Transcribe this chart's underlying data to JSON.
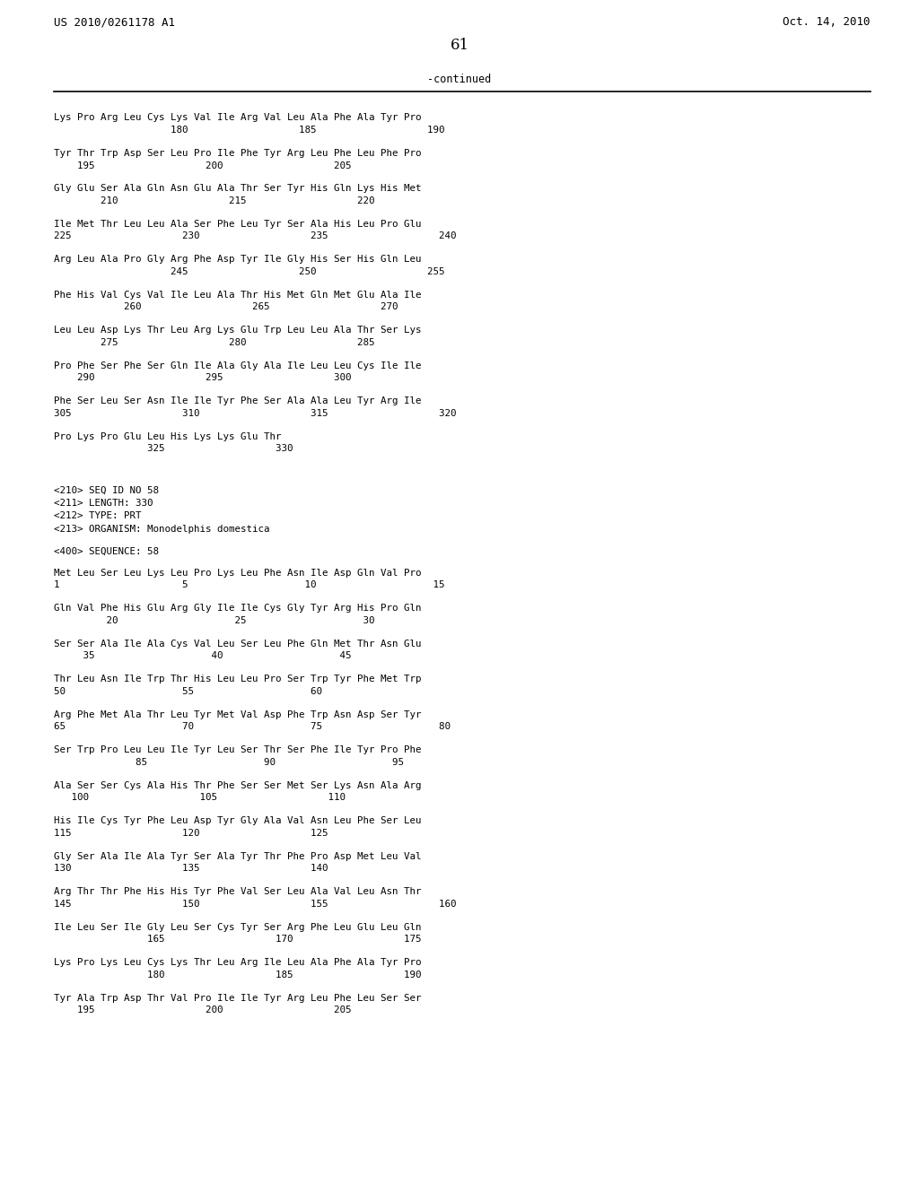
{
  "header_left": "US 2010/0261178 A1",
  "header_right": "Oct. 14, 2010",
  "page_number": "61",
  "continued_label": "-continued",
  "background_color": "#ffffff",
  "text_color": "#000000",
  "lines": [
    {
      "type": "seq",
      "text": "Lys Pro Arg Leu Cys Lys Val Ile Arg Val Leu Ala Phe Ala Tyr Pro",
      "nums": "                    180                   185                   190"
    },
    {
      "type": "seq",
      "text": "Tyr Thr Trp Asp Ser Leu Pro Ile Phe Tyr Arg Leu Phe Leu Phe Pro",
      "nums": "    195                   200                   205"
    },
    {
      "type": "seq",
      "text": "Gly Glu Ser Ala Gln Asn Glu Ala Thr Ser Tyr His Gln Lys His Met",
      "nums": "        210                   215                   220"
    },
    {
      "type": "seq",
      "text": "Ile Met Thr Leu Leu Ala Ser Phe Leu Tyr Ser Ala His Leu Pro Glu",
      "nums": "225                   230                   235                   240"
    },
    {
      "type": "seq",
      "text": "Arg Leu Ala Pro Gly Arg Phe Asp Tyr Ile Gly His Ser His Gln Leu",
      "nums": "                    245                   250                   255"
    },
    {
      "type": "seq",
      "text": "Phe His Val Cys Val Ile Leu Ala Thr His Met Gln Met Glu Ala Ile",
      "nums": "            260                   265                   270"
    },
    {
      "type": "seq",
      "text": "Leu Leu Asp Lys Thr Leu Arg Lys Glu Trp Leu Leu Ala Thr Ser Lys",
      "nums": "        275                   280                   285"
    },
    {
      "type": "seq",
      "text": "Pro Phe Ser Phe Ser Gln Ile Ala Gly Ala Ile Leu Leu Cys Ile Ile",
      "nums": "    290                   295                   300"
    },
    {
      "type": "seq",
      "text": "Phe Ser Leu Ser Asn Ile Ile Tyr Phe Ser Ala Ala Leu Tyr Arg Ile",
      "nums": "305                   310                   315                   320"
    },
    {
      "type": "seq",
      "text": "Pro Lys Pro Glu Leu His Lys Lys Glu Thr",
      "nums": "                325                   330"
    },
    {
      "type": "blank"
    },
    {
      "type": "blank"
    },
    {
      "type": "meta",
      "text": "<210> SEQ ID NO 58"
    },
    {
      "type": "meta",
      "text": "<211> LENGTH: 330"
    },
    {
      "type": "meta",
      "text": "<212> TYPE: PRT"
    },
    {
      "type": "meta",
      "text": "<213> ORGANISM: Monodelphis domestica"
    },
    {
      "type": "blank"
    },
    {
      "type": "meta",
      "text": "<400> SEQUENCE: 58"
    },
    {
      "type": "blank"
    },
    {
      "type": "seq",
      "text": "Met Leu Ser Leu Lys Leu Pro Lys Leu Phe Asn Ile Asp Gln Val Pro",
      "nums": "1                     5                    10                    15"
    },
    {
      "type": "seq",
      "text": "Gln Val Phe His Glu Arg Gly Ile Ile Cys Gly Tyr Arg His Pro Gln",
      "nums": "         20                    25                    30"
    },
    {
      "type": "seq",
      "text": "Ser Ser Ala Ile Ala Cys Val Leu Ser Leu Phe Gln Met Thr Asn Glu",
      "nums": "     35                    40                    45"
    },
    {
      "type": "seq",
      "text": "Thr Leu Asn Ile Trp Thr His Leu Leu Pro Ser Trp Tyr Phe Met Trp",
      "nums": "50                    55                    60"
    },
    {
      "type": "seq",
      "text": "Arg Phe Met Ala Thr Leu Tyr Met Val Asp Phe Trp Asn Asp Ser Tyr",
      "nums": "65                    70                    75                    80"
    },
    {
      "type": "seq",
      "text": "Ser Trp Pro Leu Leu Ile Tyr Leu Ser Thr Ser Phe Ile Tyr Pro Phe",
      "nums": "              85                    90                    95"
    },
    {
      "type": "seq",
      "text": "Ala Ser Ser Cys Ala His Thr Phe Ser Ser Met Ser Lys Asn Ala Arg",
      "nums": "   100                   105                   110"
    },
    {
      "type": "seq",
      "text": "His Ile Cys Tyr Phe Leu Asp Tyr Gly Ala Val Asn Leu Phe Ser Leu",
      "nums": "115                   120                   125"
    },
    {
      "type": "seq",
      "text": "Gly Ser Ala Ile Ala Tyr Ser Ala Tyr Thr Phe Pro Asp Met Leu Val",
      "nums": "130                   135                   140"
    },
    {
      "type": "seq",
      "text": "Arg Thr Thr Phe His His Tyr Phe Val Ser Leu Ala Val Leu Asn Thr",
      "nums": "145                   150                   155                   160"
    },
    {
      "type": "seq",
      "text": "Ile Leu Ser Ile Gly Leu Ser Cys Tyr Ser Arg Phe Leu Glu Leu Gln",
      "nums": "                165                   170                   175"
    },
    {
      "type": "seq",
      "text": "Lys Pro Lys Leu Cys Lys Thr Leu Arg Ile Leu Ala Phe Ala Tyr Pro",
      "nums": "                180                   185                   190"
    },
    {
      "type": "seq",
      "text": "Tyr Ala Trp Asp Thr Val Pro Ile Ile Tyr Arg Leu Phe Leu Ser Ser",
      "nums": "    195                   200                   205"
    }
  ]
}
